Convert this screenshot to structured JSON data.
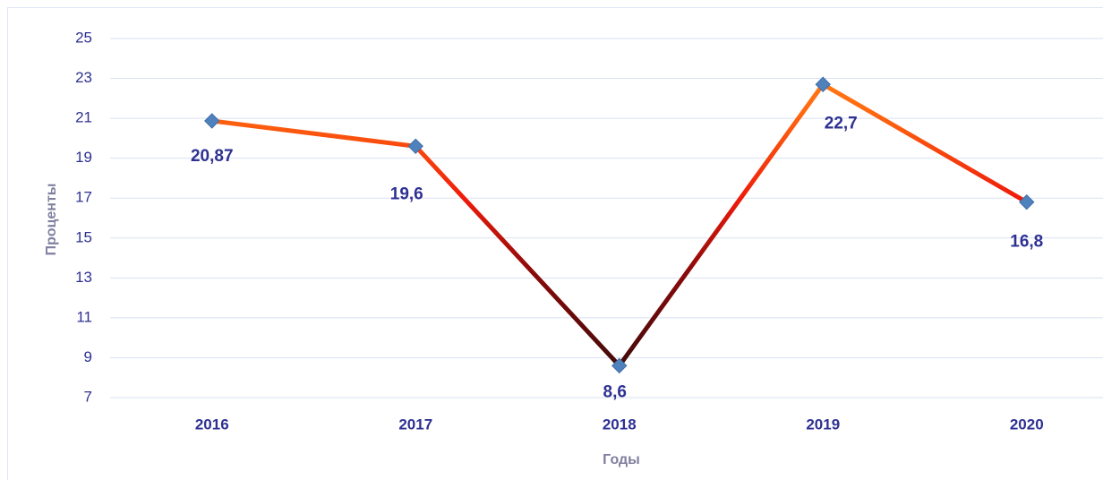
{
  "chart_data": {
    "type": "line",
    "x_label": "Годы",
    "y_label": "Проценты",
    "categories": [
      "2016",
      "2017",
      "2018",
      "2019",
      "2020"
    ],
    "values": [
      20.87,
      19.6,
      8.6,
      22.7,
      16.8
    ],
    "value_labels": [
      "20,87",
      "19,6",
      "8,6",
      "22,7",
      "16,8"
    ],
    "marker_color": "#4f81bd",
    "ylim": [
      7,
      25
    ],
    "yticks": [
      7,
      9,
      11,
      13,
      15,
      17,
      19,
      21,
      23,
      25
    ],
    "grid": true
  }
}
